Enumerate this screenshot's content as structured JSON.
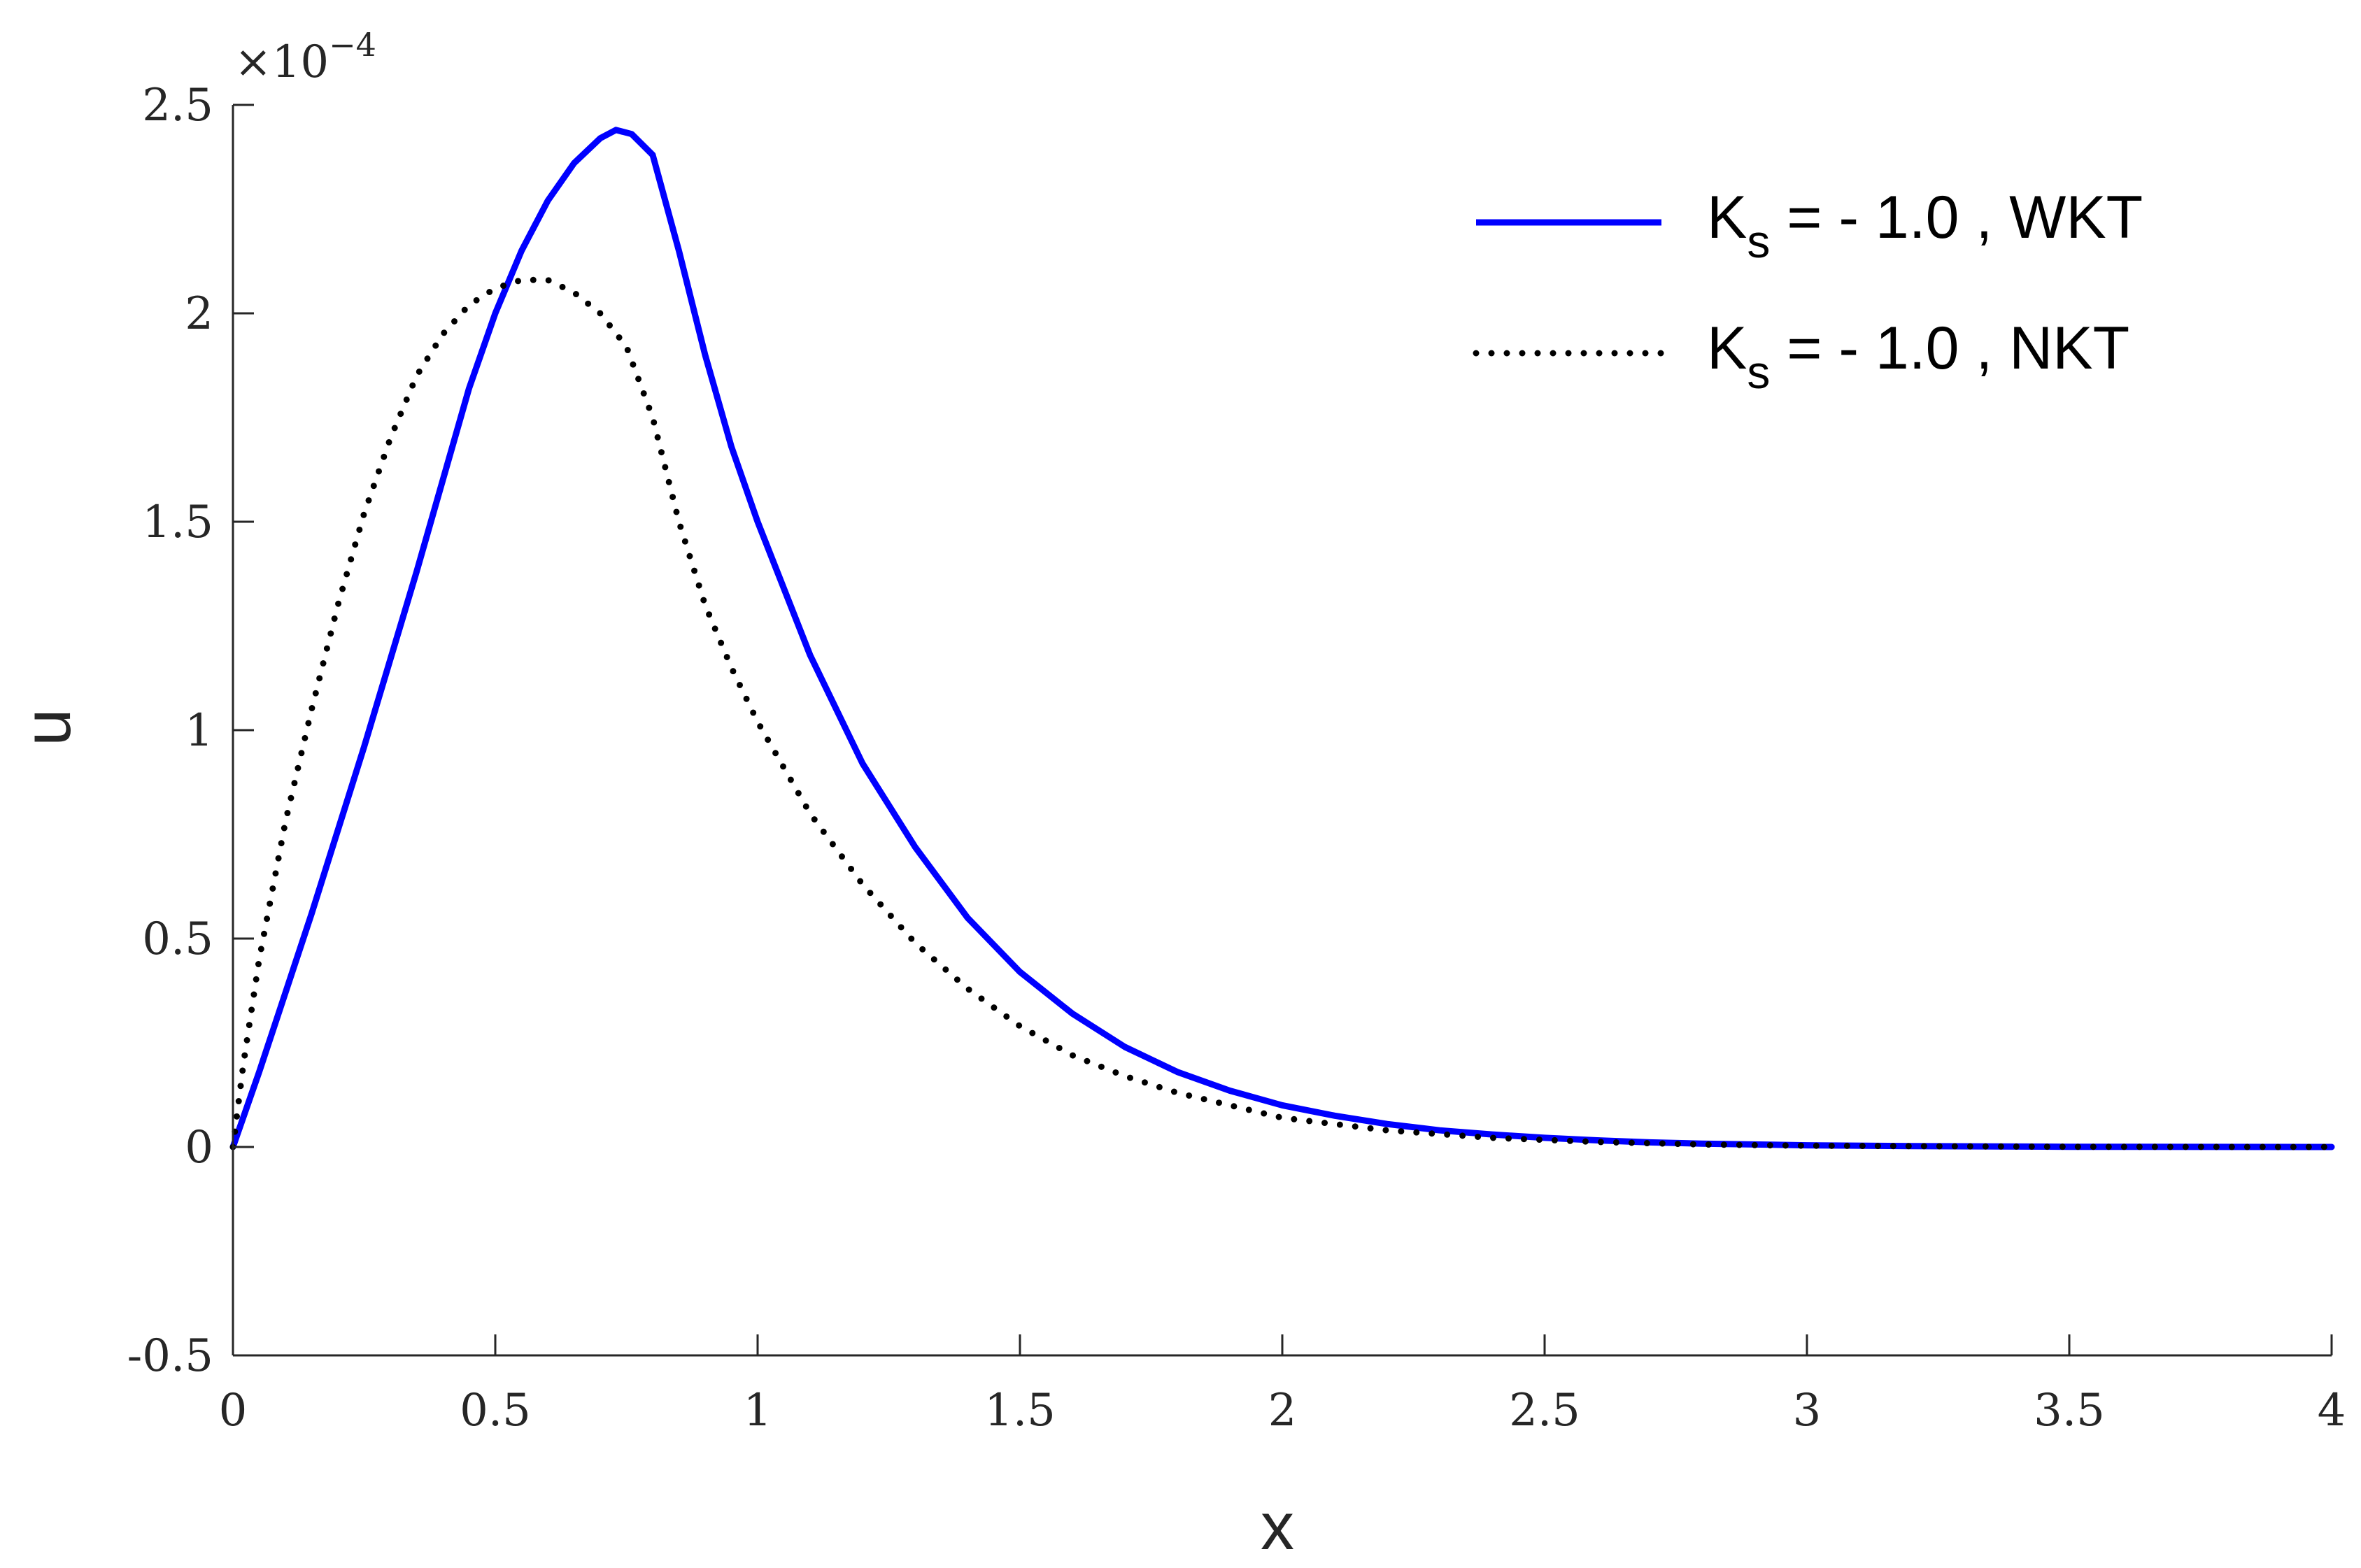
{
  "chart_data": {
    "type": "line",
    "title": "",
    "xlabel": "x",
    "ylabel": "u",
    "xlim": [
      0,
      4
    ],
    "ylim": [
      -0.5,
      2.5
    ],
    "y_exponent_label": "×10",
    "y_exponent_power": "−4",
    "x_ticks": [
      0,
      0.5,
      1,
      1.5,
      2,
      2.5,
      3,
      3.5,
      4
    ],
    "x_tick_labels": [
      "0",
      "0.5",
      "1",
      "1.5",
      "2",
      "2.5",
      "3",
      "3.5",
      "4"
    ],
    "y_ticks": [
      -0.5,
      0,
      0.5,
      1,
      1.5,
      2,
      2.5
    ],
    "y_tick_labels": [
      "-0.5",
      "0",
      "0.5",
      "1",
      "1.5",
      "2",
      "2.5"
    ],
    "grid": false,
    "legend_position": "top-right",
    "series": [
      {
        "name_main": "K",
        "name_sub": "s",
        "name_rest": " = - 1.0 , WKT",
        "color": "#0000ff",
        "line_style": "solid",
        "x": [
          0,
          0.05,
          0.1,
          0.15,
          0.2,
          0.25,
          0.3,
          0.35,
          0.4,
          0.45,
          0.5,
          0.55,
          0.6,
          0.65,
          0.7,
          0.73,
          0.76,
          0.8,
          0.85,
          0.9,
          0.95,
          1.0,
          1.1,
          1.2,
          1.3,
          1.4,
          1.5,
          1.6,
          1.7,
          1.8,
          1.9,
          2.0,
          2.1,
          2.2,
          2.3,
          2.4,
          2.5,
          2.6,
          2.7,
          2.8,
          3.0,
          3.2,
          3.5,
          4.0
        ],
        "y": [
          0,
          0.18,
          0.37,
          0.56,
          0.76,
          0.96,
          1.17,
          1.38,
          1.6,
          1.82,
          2.0,
          2.15,
          2.27,
          2.36,
          2.42,
          2.44,
          2.43,
          2.38,
          2.15,
          1.9,
          1.68,
          1.5,
          1.18,
          0.92,
          0.72,
          0.55,
          0.42,
          0.32,
          0.24,
          0.18,
          0.135,
          0.1,
          0.075,
          0.055,
          0.04,
          0.03,
          0.022,
          0.016,
          0.011,
          0.008,
          0.004,
          0.002,
          0.0005,
          0
        ]
      },
      {
        "name_main": "K",
        "name_sub": "s",
        "name_rest": " = - 1.0 , NKT",
        "color": "#000000",
        "line_style": "dotted",
        "x": [
          0,
          0.02,
          0.05,
          0.1,
          0.15,
          0.2,
          0.25,
          0.3,
          0.35,
          0.4,
          0.45,
          0.5,
          0.55,
          0.6,
          0.65,
          0.7,
          0.75,
          0.8,
          0.85,
          0.9,
          0.95,
          1.0,
          1.1,
          1.2,
          1.3,
          1.4,
          1.5,
          1.6,
          1.7,
          1.8,
          1.9,
          2.0,
          2.2,
          2.4,
          2.6,
          2.8,
          3.0,
          3.5,
          4.0
        ],
        "y": [
          0,
          0.2,
          0.45,
          0.78,
          1.05,
          1.3,
          1.52,
          1.7,
          1.85,
          1.95,
          2.02,
          2.06,
          2.08,
          2.08,
          2.05,
          2.0,
          1.92,
          1.75,
          1.5,
          1.3,
          1.15,
          1.02,
          0.8,
          0.63,
          0.49,
          0.38,
          0.29,
          0.22,
          0.17,
          0.13,
          0.1,
          0.07,
          0.04,
          0.022,
          0.012,
          0.006,
          0.003,
          0.0005,
          0
        ]
      }
    ]
  }
}
